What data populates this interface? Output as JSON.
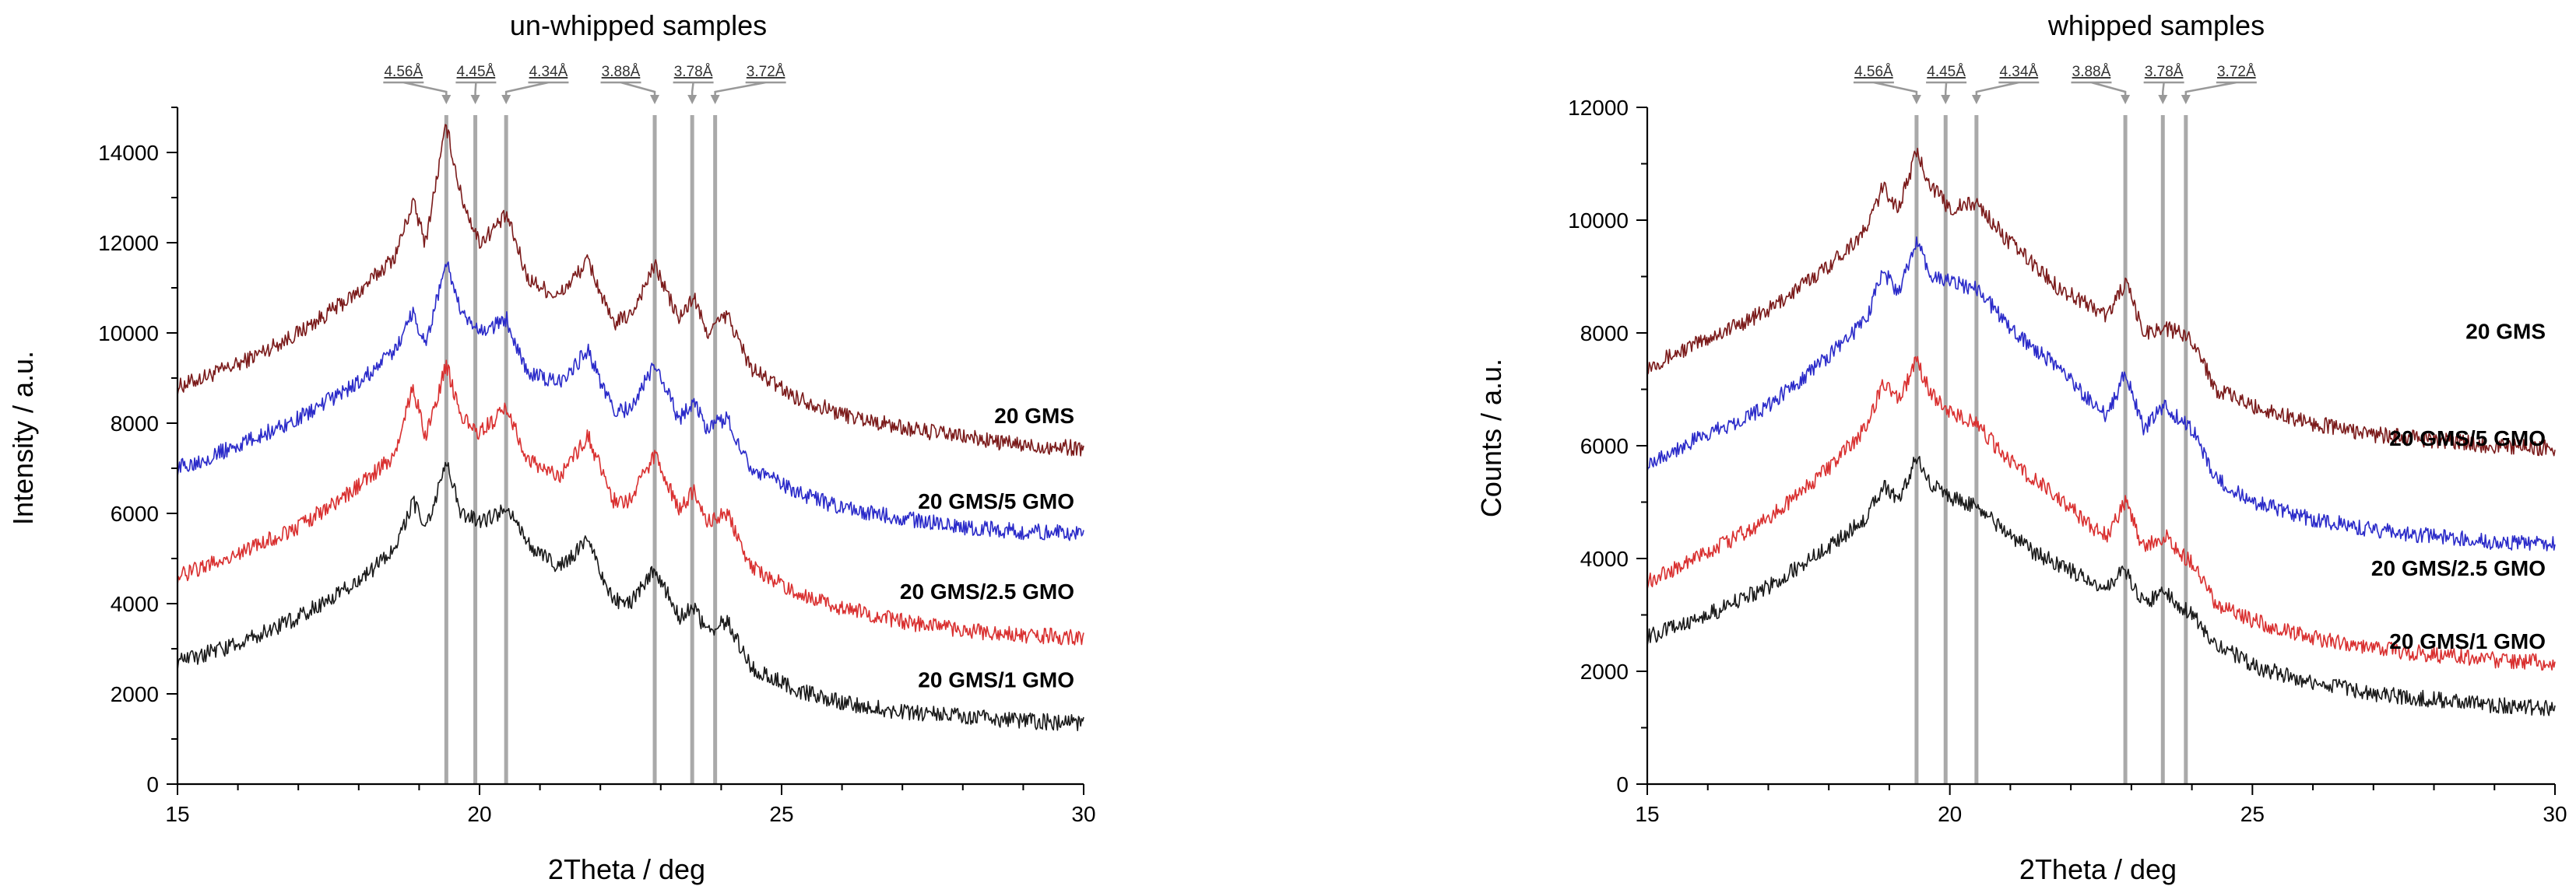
{
  "chart_data": [
    {
      "type": "line",
      "title": "un-whipped samples",
      "xlabel": "2Theta / deg",
      "ylabel": "Intensity / a.u.",
      "xlim": [
        15,
        30
      ],
      "ylim": [
        0,
        15000
      ],
      "xticks": [
        15,
        20,
        25,
        30
      ],
      "yticks": [
        0,
        2000,
        4000,
        6000,
        8000,
        10000,
        12000,
        14000
      ],
      "grid": false,
      "reference_lines": [
        {
          "label": "4.56Å",
          "x": 19.45
        },
        {
          "label": "4.45Å",
          "x": 19.93
        },
        {
          "label": "4.34Å",
          "x": 20.44
        },
        {
          "label": "3.88Å",
          "x": 22.9
        },
        {
          "label": "3.78Å",
          "x": 23.52
        },
        {
          "label": "3.72Å",
          "x": 23.9
        }
      ],
      "series": [
        {
          "name": "20 GMS",
          "color": "#7b1b1b",
          "x": [
            15,
            16,
            17,
            18,
            18.6,
            18.9,
            19.1,
            19.45,
            19.7,
            20.0,
            20.45,
            20.8,
            21.3,
            21.8,
            22.2,
            22.5,
            22.9,
            23.3,
            23.55,
            23.75,
            24.1,
            24.5,
            25.2,
            26,
            27,
            28,
            29,
            30
          ],
          "y": [
            8800,
            9300,
            10000,
            10900,
            11700,
            12900,
            12000,
            14600,
            13000,
            12000,
            12600,
            11200,
            10800,
            11600,
            10200,
            10400,
            11500,
            10300,
            10800,
            10000,
            10400,
            9200,
            8600,
            8200,
            7900,
            7700,
            7500,
            7450
          ]
        },
        {
          "name": "20 GMS/5 GMO",
          "color": "#2b2bc9",
          "x": [
            15,
            16,
            17,
            18,
            18.6,
            18.9,
            19.1,
            19.45,
            19.7,
            20.0,
            20.45,
            20.8,
            21.3,
            21.8,
            22.2,
            22.5,
            22.9,
            23.3,
            23.55,
            23.75,
            24.1,
            24.5,
            25.2,
            26,
            27,
            28,
            29,
            30
          ],
          "y": [
            7000,
            7500,
            8100,
            8900,
            9600,
            10500,
            9700,
            11600,
            10400,
            10000,
            10300,
            9100,
            8900,
            9600,
            8300,
            8300,
            9300,
            8100,
            8500,
            7900,
            8100,
            7000,
            6500,
            6100,
            5900,
            5700,
            5600,
            5550
          ]
        },
        {
          "name": "20 GMS/2.5 GMO",
          "color": "#d93030",
          "x": [
            15,
            16,
            17,
            18,
            18.6,
            18.9,
            19.1,
            19.45,
            19.7,
            20.0,
            20.45,
            20.8,
            21.3,
            21.8,
            22.2,
            22.5,
            22.9,
            23.3,
            23.55,
            23.75,
            24.1,
            24.5,
            25.2,
            26,
            27,
            28,
            29,
            30
          ],
          "y": [
            4600,
            5100,
            5700,
            6600,
            7300,
            8800,
            7700,
            9300,
            8100,
            7800,
            8300,
            7200,
            6800,
            7700,
            6300,
            6300,
            7300,
            6100,
            6500,
            5800,
            6000,
            4800,
            4300,
            3900,
            3600,
            3400,
            3300,
            3250
          ]
        },
        {
          "name": "20 GMS/1 GMO",
          "color": "#1a1a1a",
          "x": [
            15,
            16,
            17,
            18,
            18.6,
            18.9,
            19.1,
            19.45,
            19.7,
            20.0,
            20.45,
            20.8,
            21.3,
            21.8,
            22.2,
            22.5,
            22.9,
            23.3,
            23.55,
            23.75,
            24.1,
            24.5,
            25.2,
            26,
            27,
            28,
            29,
            30
          ],
          "y": [
            2700,
            3100,
            3700,
            4500,
            5200,
            6300,
            5600,
            7100,
            6000,
            5800,
            6100,
            5300,
            4800,
            5400,
            4100,
            4000,
            4800,
            3700,
            3900,
            3400,
            3600,
            2600,
            2100,
            1800,
            1600,
            1500,
            1400,
            1350
          ]
        }
      ]
    },
    {
      "type": "line",
      "title": "whipped samples",
      "xlabel": "2Theta / deg",
      "ylabel": "Counts / a.u.",
      "xlim": [
        15,
        30
      ],
      "ylim": [
        0,
        12000
      ],
      "xticks": [
        15,
        20,
        25,
        30
      ],
      "yticks": [
        0,
        2000,
        4000,
        6000,
        8000,
        10000,
        12000
      ],
      "grid": false,
      "reference_lines": [
        {
          "label": "4.56Å",
          "x": 19.45
        },
        {
          "label": "4.45Å",
          "x": 19.93
        },
        {
          "label": "4.34Å",
          "x": 20.44
        },
        {
          "label": "3.88Å",
          "x": 22.9
        },
        {
          "label": "3.78Å",
          "x": 23.52
        },
        {
          "label": "3.72Å",
          "x": 23.9
        }
      ],
      "series": [
        {
          "name": "20 GMS",
          "color": "#7b1b1b",
          "x": [
            15,
            16,
            17,
            18,
            18.6,
            18.9,
            19.15,
            19.45,
            19.7,
            20.0,
            20.45,
            20.9,
            21.4,
            21.8,
            22.3,
            22.6,
            22.9,
            23.2,
            23.55,
            24.0,
            24.4,
            25,
            26,
            27,
            28,
            29,
            30
          ],
          "y": [
            7400,
            7900,
            8400,
            9200,
            9800,
            10600,
            10200,
            11200,
            10600,
            10200,
            10300,
            9700,
            9200,
            8800,
            8500,
            8300,
            8900,
            8000,
            8100,
            7900,
            7000,
            6700,
            6400,
            6200,
            6100,
            6000,
            5950
          ]
        },
        {
          "name": "20 GMS/5 GMO",
          "color": "#2b2bc9",
          "x": [
            15,
            16,
            17,
            18,
            18.6,
            18.9,
            19.15,
            19.45,
            19.7,
            20.0,
            20.45,
            20.9,
            21.4,
            21.8,
            22.3,
            22.6,
            22.9,
            23.2,
            23.55,
            24.0,
            24.4,
            25,
            26,
            27,
            28,
            29,
            30
          ],
          "y": [
            5700,
            6200,
            6700,
            7600,
            8200,
            9100,
            8700,
            9600,
            9000,
            8900,
            8800,
            8200,
            7700,
            7400,
            6800,
            6500,
            7300,
            6300,
            6700,
            6300,
            5400,
            5000,
            4700,
            4500,
            4400,
            4300,
            4250
          ]
        },
        {
          "name": "20 GMS/2.5 GMO",
          "color": "#d93030",
          "x": [
            15,
            16,
            17,
            18,
            18.6,
            18.9,
            19.15,
            19.45,
            19.7,
            20.0,
            20.45,
            20.9,
            21.4,
            21.8,
            22.3,
            22.6,
            22.9,
            23.2,
            23.55,
            24.0,
            24.4,
            25,
            26,
            27,
            28,
            29,
            30
          ],
          "y": [
            3600,
            4100,
            4700,
            5600,
            6300,
            7100,
            6800,
            7500,
            6900,
            6600,
            6400,
            5800,
            5400,
            5100,
            4600,
            4400,
            5000,
            4200,
            4400,
            3900,
            3200,
            2900,
            2600,
            2400,
            2300,
            2200,
            2150
          ]
        },
        {
          "name": "20 GMS/1 GMO",
          "color": "#1a1a1a",
          "x": [
            15,
            16,
            17,
            18,
            18.6,
            18.9,
            19.15,
            19.45,
            19.7,
            20.0,
            20.45,
            20.9,
            21.4,
            21.8,
            22.3,
            22.6,
            22.9,
            23.2,
            23.55,
            24.0,
            24.4,
            25,
            26,
            27,
            28,
            29,
            30
          ],
          "y": [
            2600,
            3000,
            3500,
            4200,
            4700,
            5300,
            5000,
            5800,
            5300,
            5100,
            4900,
            4500,
            4100,
            3900,
            3600,
            3500,
            3800,
            3200,
            3400,
            3000,
            2500,
            2100,
            1800,
            1600,
            1500,
            1400,
            1350
          ]
        }
      ]
    }
  ]
}
